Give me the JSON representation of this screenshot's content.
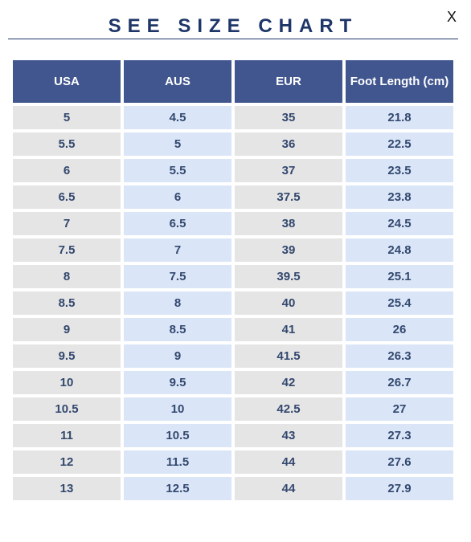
{
  "title": "SEE SIZE CHART",
  "close_label": "X",
  "table": {
    "headers": [
      "USA",
      "AUS",
      "EUR",
      "Foot Length (cm)"
    ],
    "rows": [
      [
        "5",
        "4.5",
        "35",
        "21.8"
      ],
      [
        "5.5",
        "5",
        "36",
        "22.5"
      ],
      [
        "6",
        "5.5",
        "37",
        "23.5"
      ],
      [
        "6.5",
        "6",
        "37.5",
        "23.8"
      ],
      [
        "7",
        "6.5",
        "38",
        "24.5"
      ],
      [
        "7.5",
        "7",
        "39",
        "24.8"
      ],
      [
        "8",
        "7.5",
        "39.5",
        "25.1"
      ],
      [
        "8.5",
        "8",
        "40",
        "25.4"
      ],
      [
        "9",
        "8.5",
        "41",
        "26"
      ],
      [
        "9.5",
        "9",
        "41.5",
        "26.3"
      ],
      [
        "10",
        "9.5",
        "42",
        "26.7"
      ],
      [
        "10.5",
        "10",
        "42.5",
        "27"
      ],
      [
        "11",
        "10.5",
        "43",
        "27.3"
      ],
      [
        "12",
        "11.5",
        "44",
        "27.6"
      ],
      [
        "13",
        "12.5",
        "44",
        "27.9"
      ]
    ]
  },
  "colors": {
    "header_bg": "#41568f",
    "header_text": "#ffffff",
    "title_text": "#1f3668",
    "cell_text": "#33486e",
    "cell_grey": "#e5e5e5",
    "cell_blue": "#dae6f8"
  }
}
